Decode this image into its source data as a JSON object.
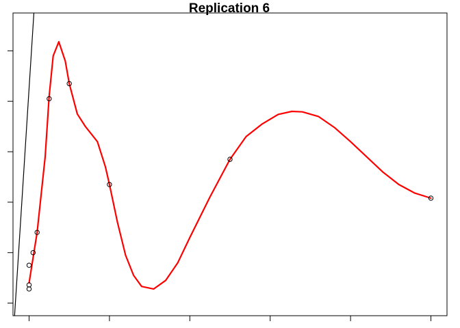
{
  "chart_data": {
    "type": "scatter",
    "title": "Replication 6",
    "xlabel": "",
    "ylabel": "",
    "xlim": [
      -0.2,
      5.2
    ],
    "ylim": [
      -0.25,
      5.75
    ],
    "x_ticks": [
      0,
      1,
      2,
      3,
      4,
      5
    ],
    "y_ticks": [
      0,
      1,
      2,
      3,
      4,
      5
    ],
    "tick_labels_visible": false,
    "grid": false,
    "legend": "none",
    "series": [
      {
        "kind": "points",
        "marker": "open-circle",
        "color": "#000000",
        "points": [
          [
            0.0,
            0.28
          ],
          [
            0.0,
            0.36
          ],
          [
            0.0,
            0.75
          ],
          [
            0.05,
            1.0
          ],
          [
            0.1,
            1.4
          ],
          [
            0.25,
            4.05
          ],
          [
            0.5,
            4.35
          ],
          [
            1.0,
            2.35
          ],
          [
            2.5,
            2.85
          ],
          [
            5.0,
            2.08
          ]
        ]
      },
      {
        "kind": "line",
        "color": "#ff0000",
        "points": [
          [
            0.0,
            0.4
          ],
          [
            0.1,
            1.4
          ],
          [
            0.2,
            2.9
          ],
          [
            0.25,
            4.1
          ],
          [
            0.3,
            4.9
          ],
          [
            0.37,
            5.18
          ],
          [
            0.45,
            4.8
          ],
          [
            0.5,
            4.35
          ],
          [
            0.6,
            3.75
          ],
          [
            0.7,
            3.5
          ],
          [
            0.85,
            3.2
          ],
          [
            0.95,
            2.7
          ],
          [
            1.0,
            2.35
          ],
          [
            1.1,
            1.6
          ],
          [
            1.2,
            0.95
          ],
          [
            1.3,
            0.55
          ],
          [
            1.4,
            0.33
          ],
          [
            1.55,
            0.28
          ],
          [
            1.7,
            0.45
          ],
          [
            1.85,
            0.8
          ],
          [
            2.0,
            1.3
          ],
          [
            2.25,
            2.1
          ],
          [
            2.5,
            2.85
          ],
          [
            2.7,
            3.3
          ],
          [
            2.9,
            3.55
          ],
          [
            3.1,
            3.74
          ],
          [
            3.27,
            3.8
          ],
          [
            3.4,
            3.79
          ],
          [
            3.6,
            3.7
          ],
          [
            3.8,
            3.48
          ],
          [
            4.0,
            3.2
          ],
          [
            4.2,
            2.9
          ],
          [
            4.4,
            2.6
          ],
          [
            4.6,
            2.35
          ],
          [
            4.8,
            2.18
          ],
          [
            5.0,
            2.08
          ]
        ]
      },
      {
        "kind": "line",
        "color": "#000000",
        "points": [
          [
            -0.18,
            -0.25
          ],
          [
            0.06,
            5.75
          ]
        ]
      }
    ]
  }
}
